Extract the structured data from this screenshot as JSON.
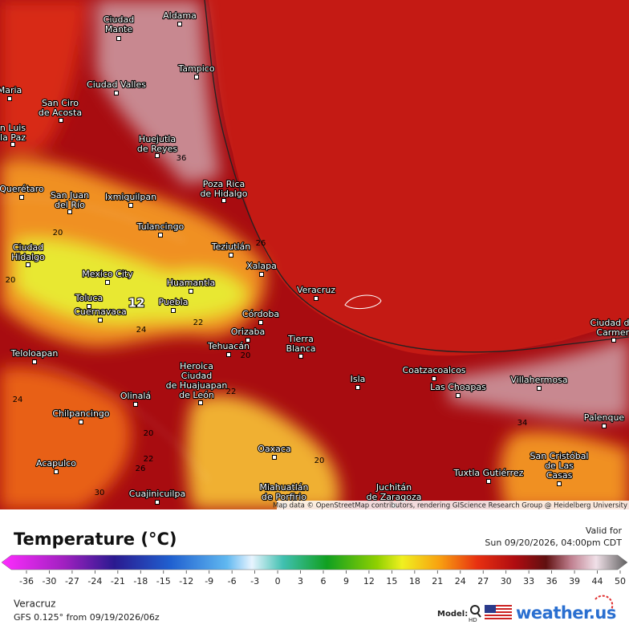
{
  "map": {
    "attribution": "Map data © OpenStreetMap contributors, rendering GIScience Research Group @ Heidelberg University",
    "cities": [
      {
        "lines": [
          "Aldama"
        ]
      },
      {
        "lines": [
          "Ciudad",
          "Mante"
        ]
      },
      {
        "lines": [
          "Tampico"
        ]
      },
      {
        "lines": [
          "Ciudad Valles"
        ]
      },
      {
        "lines": [
          "San Ciro",
          "de Acosta"
        ]
      },
      {
        "lines": [
          "Huejutla",
          "de Reyes"
        ]
      },
      {
        "lines": [
          "Poza Rica",
          "de Hidalgo"
        ]
      },
      {
        "lines": [
          "San Juan",
          "del Río"
        ]
      },
      {
        "lines": [
          "Ixmiquilpan"
        ]
      },
      {
        "lines": [
          "Querétaro"
        ]
      },
      {
        "lines": [
          "Tulancingo"
        ]
      },
      {
        "lines": [
          "Teziutlán"
        ]
      },
      {
        "lines": [
          "Ciudad",
          "Hidalgo"
        ]
      },
      {
        "lines": [
          "Xalapa"
        ]
      },
      {
        "lines": [
          "Mexico City"
        ]
      },
      {
        "lines": [
          "Huamantla"
        ]
      },
      {
        "lines": [
          "Veracruz"
        ]
      },
      {
        "lines": [
          "Toluca"
        ]
      },
      {
        "lines": [
          "Puebla"
        ]
      },
      {
        "lines": [
          "Cuernavaca"
        ]
      },
      {
        "lines": [
          "Córdoba"
        ]
      },
      {
        "lines": [
          "Orizaba"
        ]
      },
      {
        "lines": [
          "Tierra",
          "Blanca"
        ]
      },
      {
        "lines": [
          "Tehuacán"
        ]
      },
      {
        "lines": [
          "Teloloapan"
        ]
      },
      {
        "lines": [
          "Heroica",
          "Ciudad",
          "de Huajuapan",
          "de León"
        ]
      },
      {
        "lines": [
          "Coatzacoalcos"
        ]
      },
      {
        "lines": [
          "Isla"
        ]
      },
      {
        "lines": [
          "Villahermosa"
        ]
      },
      {
        "lines": [
          "Las Choapas"
        ]
      },
      {
        "lines": [
          "Olinalá"
        ]
      },
      {
        "lines": [
          "Palenque"
        ]
      },
      {
        "lines": [
          "Chilpancingo"
        ]
      },
      {
        "lines": [
          "Oaxaca"
        ]
      },
      {
        "lines": [
          "San Cristóbal",
          "de Las",
          "Casas"
        ]
      },
      {
        "lines": [
          "Acapulco"
        ]
      },
      {
        "lines": [
          "Tuxtla Gutiérrez"
        ]
      },
      {
        "lines": [
          "Juchitán",
          "de Zaragoza"
        ]
      },
      {
        "lines": [
          "Miahuatlán",
          "de Porfirio"
        ]
      },
      {
        "lines": [
          "Cuajinicuilpa"
        ]
      },
      {
        "lines": [
          "Ciudad del",
          "Carmen"
        ]
      },
      {
        "lines": [
          "n Luis",
          "la Paz"
        ]
      },
      {
        "lines": [
          "Maria"
        ]
      }
    ],
    "contour_labels": [
      "12",
      "20",
      "20",
      "24",
      "22",
      "20",
      "22",
      "24",
      "20",
      "22",
      "26",
      "20",
      "36",
      "34",
      "26",
      "30"
    ]
  },
  "legend": {
    "title": "Temperature (°C)",
    "valid_label": "Valid for",
    "valid_time": "Sun 09/20/2026, 04:00pm CDT",
    "ticks": [
      -36,
      -30,
      -27,
      -24,
      -21,
      -18,
      -15,
      -12,
      -9,
      -6,
      -3,
      0,
      3,
      6,
      9,
      12,
      15,
      18,
      21,
      24,
      27,
      30,
      33,
      36,
      39,
      44,
      50
    ]
  },
  "footer": {
    "region": "Veracruz",
    "model_run": "GFS 0.125° from  09/19/2026/06z",
    "model_label": "Model:",
    "hd": "HD",
    "brand": "weather.us"
  }
}
